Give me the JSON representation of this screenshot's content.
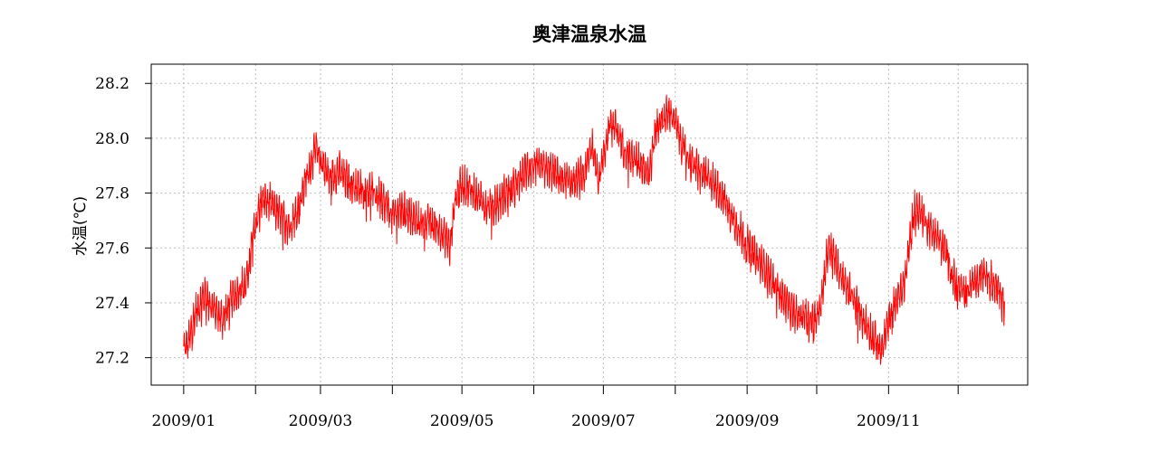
{
  "chart_data": {
    "type": "line",
    "title": "奥津温泉水温",
    "xlabel": "",
    "ylabel": "水温(℃)",
    "x_range": [
      "2008-12-18",
      "2009-12-31"
    ],
    "ylim": [
      27.1,
      28.27
    ],
    "y_ticks": [
      27.2,
      27.4,
      27.6,
      27.8,
      28.0,
      28.2
    ],
    "y_tick_labels": [
      "27.2",
      "27.4",
      "27.6",
      "27.8",
      "28.0",
      "28.2"
    ],
    "x_ticks": [
      "2009-01-01",
      "2009-02-01",
      "2009-03-01",
      "2009-04-01",
      "2009-05-01",
      "2009-06-01",
      "2009-07-01",
      "2009-08-01",
      "2009-09-01",
      "2009-10-01",
      "2009-11-01",
      "2009-12-01"
    ],
    "x_tick_labels": [
      "2009/01",
      "",
      "2009/03",
      "",
      "2009/05",
      "",
      "2009/07",
      "",
      "2009/09",
      "",
      "2009/11",
      ""
    ],
    "grid": true,
    "line_color": "#ff0000",
    "series": [
      {
        "name": "",
        "noise_amplitude": 0.08,
        "x": [
          "2009-01-01",
          "2009-01-03",
          "2009-01-06",
          "2009-01-10",
          "2009-01-14",
          "2009-01-18",
          "2009-01-21",
          "2009-01-25",
          "2009-01-28",
          "2009-02-01",
          "2009-02-04",
          "2009-02-08",
          "2009-02-12",
          "2009-02-16",
          "2009-02-20",
          "2009-02-23",
          "2009-02-27",
          "2009-03-02",
          "2009-03-05",
          "2009-03-09",
          "2009-03-13",
          "2009-03-17",
          "2009-03-21",
          "2009-03-24",
          "2009-03-28",
          "2009-04-01",
          "2009-04-05",
          "2009-04-09",
          "2009-04-13",
          "2009-04-16",
          "2009-04-20",
          "2009-04-24",
          "2009-04-26",
          "2009-04-28",
          "2009-05-01",
          "2009-05-05",
          "2009-05-09",
          "2009-05-12",
          "2009-05-16",
          "2009-05-20",
          "2009-05-24",
          "2009-05-28",
          "2009-06-01",
          "2009-06-05",
          "2009-06-09",
          "2009-06-13",
          "2009-06-17",
          "2009-06-20",
          "2009-06-23",
          "2009-06-26",
          "2009-06-29",
          "2009-07-01",
          "2009-07-04",
          "2009-07-07",
          "2009-07-10",
          "2009-07-13",
          "2009-07-17",
          "2009-07-21",
          "2009-07-24",
          "2009-07-27",
          "2009-07-30",
          "2009-08-02",
          "2009-08-05",
          "2009-08-09",
          "2009-08-13",
          "2009-08-17",
          "2009-08-21",
          "2009-08-25",
          "2009-08-29",
          "2009-09-02",
          "2009-09-06",
          "2009-09-10",
          "2009-09-14",
          "2009-09-18",
          "2009-09-22",
          "2009-09-26",
          "2009-09-30",
          "2009-10-03",
          "2009-10-06",
          "2009-10-08",
          "2009-10-10",
          "2009-10-13",
          "2009-10-17",
          "2009-10-21",
          "2009-10-25",
          "2009-10-29",
          "2009-11-01",
          "2009-11-04",
          "2009-11-08",
          "2009-11-12",
          "2009-11-15",
          "2009-11-18",
          "2009-11-22",
          "2009-11-26",
          "2009-11-30",
          "2009-12-04",
          "2009-12-08",
          "2009-12-12",
          "2009-12-16",
          "2009-12-19",
          "2009-12-21"
        ],
        "y": [
          27.25,
          27.27,
          27.38,
          27.45,
          27.4,
          27.36,
          27.42,
          27.47,
          27.49,
          27.72,
          27.8,
          27.78,
          27.73,
          27.7,
          27.78,
          27.88,
          27.98,
          27.93,
          27.87,
          27.9,
          27.86,
          27.84,
          27.83,
          27.82,
          27.79,
          27.74,
          27.76,
          27.74,
          27.71,
          27.72,
          27.7,
          27.66,
          27.62,
          27.8,
          27.85,
          27.83,
          27.8,
          27.77,
          27.78,
          27.82,
          27.84,
          27.9,
          27.92,
          27.91,
          27.9,
          27.87,
          27.86,
          27.87,
          27.89,
          28.0,
          27.88,
          27.95,
          28.08,
          28.05,
          27.98,
          27.95,
          27.93,
          27.9,
          28.07,
          28.09,
          28.12,
          28.05,
          27.97,
          27.92,
          27.89,
          27.86,
          27.82,
          27.74,
          27.68,
          27.62,
          27.57,
          27.53,
          27.47,
          27.42,
          27.37,
          27.38,
          27.35,
          27.43,
          27.63,
          27.6,
          27.55,
          27.49,
          27.43,
          27.36,
          27.3,
          27.25,
          27.35,
          27.42,
          27.5,
          27.76,
          27.75,
          27.7,
          27.66,
          27.6,
          27.48,
          27.45,
          27.5,
          27.54,
          27.49,
          27.46,
          27.41
        ]
      }
    ]
  }
}
